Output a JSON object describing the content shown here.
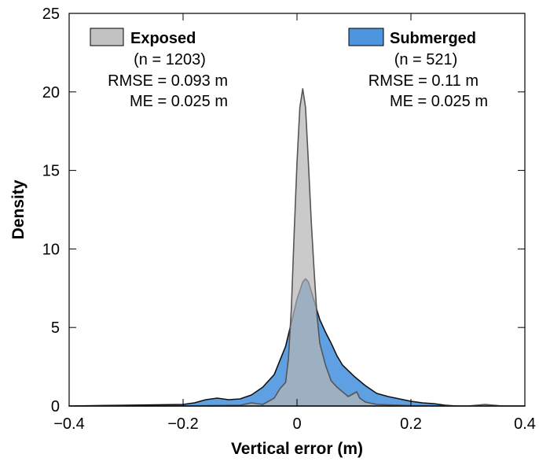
{
  "chart_data": {
    "type": "area",
    "xlabel": "Vertical error (m)",
    "ylabel": "Density",
    "xlim": [
      -0.4,
      0.4
    ],
    "ylim": [
      0,
      25
    ],
    "x_ticks": [
      -0.4,
      -0.2,
      0,
      0.2,
      0.4
    ],
    "x_tick_labels": [
      "−0.4",
      "−0.2",
      "0",
      "0.2",
      "0.4"
    ],
    "y_ticks": [
      0,
      5,
      10,
      15,
      20,
      25
    ],
    "y_tick_labels": [
      "0",
      "5",
      "10",
      "15",
      "20",
      "25"
    ],
    "grid": false,
    "series": [
      {
        "name": "Submerged",
        "color": "#4d96df",
        "stroke": "#111111",
        "fill_opacity": 0.9,
        "points": [
          [
            -0.4,
            0.0
          ],
          [
            -0.3,
            0.05
          ],
          [
            -0.2,
            0.1
          ],
          [
            -0.18,
            0.2
          ],
          [
            -0.16,
            0.4
          ],
          [
            -0.14,
            0.5
          ],
          [
            -0.12,
            0.4
          ],
          [
            -0.1,
            0.45
          ],
          [
            -0.08,
            0.7
          ],
          [
            -0.06,
            1.2
          ],
          [
            -0.04,
            2.0
          ],
          [
            -0.02,
            3.8
          ],
          [
            0.0,
            6.8
          ],
          [
            0.01,
            7.9
          ],
          [
            0.015,
            8.1
          ],
          [
            0.02,
            7.9
          ],
          [
            0.03,
            6.7
          ],
          [
            0.04,
            5.5
          ],
          [
            0.05,
            4.7
          ],
          [
            0.06,
            4.0
          ],
          [
            0.07,
            3.2
          ],
          [
            0.08,
            2.6
          ],
          [
            0.1,
            1.9
          ],
          [
            0.12,
            1.3
          ],
          [
            0.14,
            0.8
          ],
          [
            0.16,
            0.6
          ],
          [
            0.18,
            0.45
          ],
          [
            0.2,
            0.3
          ],
          [
            0.22,
            0.2
          ],
          [
            0.24,
            0.15
          ],
          [
            0.26,
            0.05
          ],
          [
            0.28,
            0.0
          ],
          [
            0.32,
            0.0
          ],
          [
            0.4,
            0.0
          ]
        ]
      },
      {
        "name": "Exposed",
        "color": "#b6b6b6",
        "stroke": "#555555",
        "fill_opacity": 0.72,
        "points": [
          [
            -0.4,
            0.0
          ],
          [
            -0.2,
            0.0
          ],
          [
            -0.1,
            0.05
          ],
          [
            -0.08,
            0.2
          ],
          [
            -0.06,
            0.1
          ],
          [
            -0.05,
            0.3
          ],
          [
            -0.04,
            0.5
          ],
          [
            -0.03,
            1.1
          ],
          [
            -0.02,
            1.5
          ],
          [
            -0.015,
            3.0
          ],
          [
            -0.01,
            6.2
          ],
          [
            -0.005,
            11.0
          ],
          [
            0.0,
            15.5
          ],
          [
            0.005,
            19.0
          ],
          [
            0.01,
            20.2
          ],
          [
            0.015,
            19.0
          ],
          [
            0.02,
            15.5
          ],
          [
            0.025,
            11.8
          ],
          [
            0.03,
            8.6
          ],
          [
            0.035,
            5.8
          ],
          [
            0.04,
            4.0
          ],
          [
            0.05,
            2.6
          ],
          [
            0.06,
            1.6
          ],
          [
            0.07,
            1.2
          ],
          [
            0.08,
            0.9
          ],
          [
            0.09,
            0.6
          ],
          [
            0.1,
            0.8
          ],
          [
            0.105,
            0.9
          ],
          [
            0.11,
            0.5
          ],
          [
            0.12,
            0.25
          ],
          [
            0.14,
            0.1
          ],
          [
            0.2,
            0.02
          ],
          [
            0.3,
            0.0
          ],
          [
            0.33,
            0.1
          ],
          [
            0.36,
            0.0
          ],
          [
            0.4,
            0.0
          ]
        ]
      }
    ],
    "annotations": {
      "exposed": {
        "label": "Exposed",
        "n": "(n = 1203)",
        "rmse": "RMSE = 0.093 m",
        "me": "ME = 0.025 m",
        "position": "top-left"
      },
      "submerged": {
        "label": "Submerged",
        "n": "(n = 521)",
        "rmse": "RMSE = 0.11 m",
        "me": "ME = 0.025 m",
        "position": "top-right"
      }
    }
  }
}
